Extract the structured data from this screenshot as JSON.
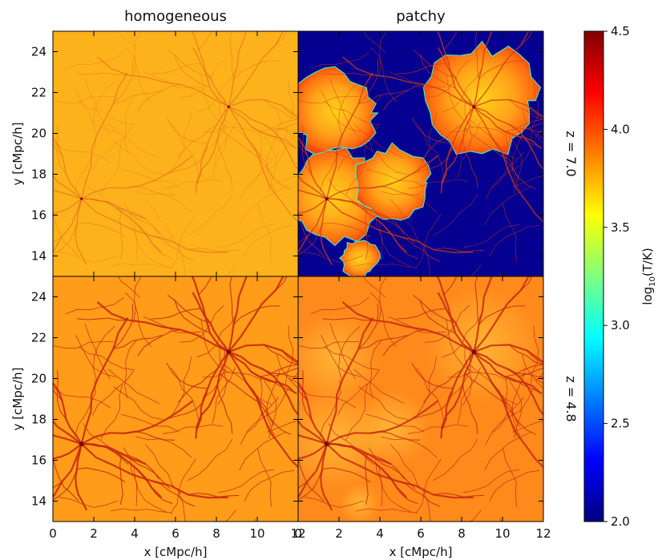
{
  "chart_data": {
    "type": "heatmap",
    "columns": [
      "homogeneous",
      "patchy"
    ],
    "rows": [
      "z = 7.0",
      "z = 4.8"
    ],
    "xlabel": "x [cMpc/h]",
    "ylabel": "y [cMpc/h]",
    "xlim": [
      0,
      12
    ],
    "ylim": [
      13,
      25
    ],
    "xticks": [
      0,
      2,
      4,
      6,
      8,
      10,
      12
    ],
    "yticks": [
      14,
      16,
      18,
      20,
      22,
      24
    ],
    "colorbar": {
      "label": "log10(T/K)",
      "label_base": "log",
      "label_sub": "10",
      "label_rest": "(T/K)",
      "min": 2.0,
      "max": 4.5,
      "ticks": [
        "2.0",
        "2.5",
        "3.0",
        "3.5",
        "4.0",
        "4.5"
      ],
      "colormap": "jet",
      "colors": [
        "#00007f",
        "#0000ff",
        "#007fff",
        "#00ffff",
        "#7fff7f",
        "#ffff00",
        "#ff7f00",
        "#ff0000",
        "#7f0000"
      ]
    },
    "panels": [
      {
        "column": "homogeneous",
        "row": "z = 7.0",
        "background_log10T": 3.9,
        "filament_log10T": 4.3,
        "halo_centers": [
          [
            8.6,
            21.3
          ],
          [
            1.4,
            16.8
          ]
        ]
      },
      {
        "column": "patchy",
        "row": "z = 7.0",
        "background_log10T": 2.0,
        "ionized_log10T": 4.05,
        "filament_log10T": 4.3,
        "ionized_bubbles": [
          [
            1.8,
            17.0,
            2.3
          ],
          [
            4.6,
            17.6,
            1.7
          ],
          [
            9.0,
            21.6,
            2.6
          ],
          [
            1.8,
            21.0,
            2.0
          ],
          [
            3.0,
            13.9,
            0.9
          ]
        ]
      },
      {
        "column": "homogeneous",
        "row": "z = 4.8",
        "background_log10T": 4.05,
        "filament_log10T": 4.35,
        "halo_centers": [
          [
            8.7,
            21.4
          ],
          [
            1.3,
            16.8
          ]
        ]
      },
      {
        "column": "patchy",
        "row": "z = 4.8",
        "background_log10T": 4.1,
        "filament_log10T": 4.35,
        "halo_centers": [
          [
            8.7,
            21.4
          ],
          [
            1.3,
            16.8
          ]
        ]
      }
    ]
  }
}
